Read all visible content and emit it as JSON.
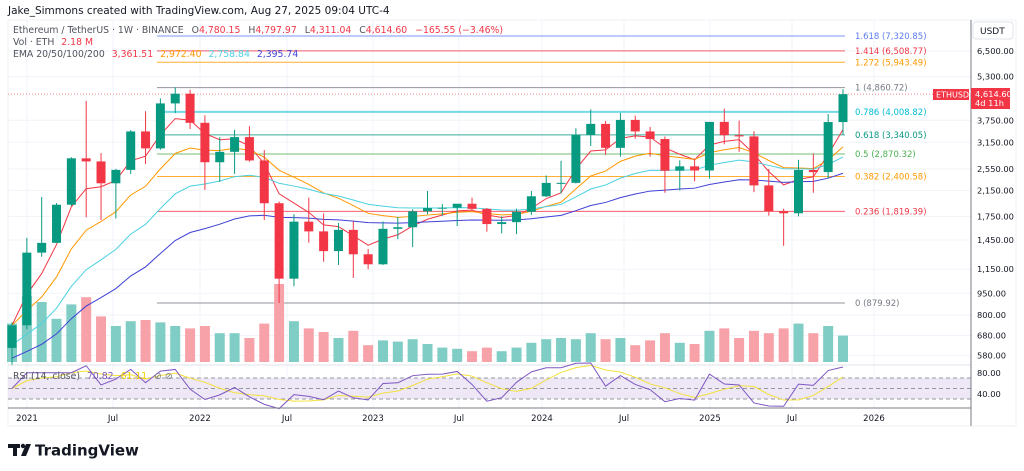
{
  "header": {
    "credit": "Jake_Simmons created with TradingView.com, Aug 27, 2025 09:04 UTC-4"
  },
  "legend": {
    "symbol": "Ethereum / TetherUS · 1W · BINANCE",
    "o_label": "O",
    "o": "4,780.15",
    "h_label": "H",
    "h": "4,797.97",
    "l_label": "L",
    "l": "4,311.04",
    "c_label": "C",
    "c": "4,614.60",
    "change": "−165.55 (−3.46%)",
    "vol_label": "Vol · ETH",
    "vol": "2.18 M",
    "ema_label": "EMA 20/50/100/200",
    "ema20": "3,361.51",
    "ema50": "2,972.40",
    "ema100": "2,758.84",
    "ema200": "2,395.74",
    "rsi_label": "RSI (14, close)",
    "rsi": "70.82",
    "rsi_ma": "61.11"
  },
  "price_axis": {
    "unit": "USDT",
    "ticks": [
      {
        "value": 6500,
        "label": "6,500.00"
      },
      {
        "value": 5300,
        "label": "5,300.00"
      },
      {
        "value": 3750,
        "label": "3,750.00"
      },
      {
        "value": 3150,
        "label": "3,150.00"
      },
      {
        "value": 2550,
        "label": "2,550.00"
      },
      {
        "value": 2150,
        "label": "2,150.00"
      },
      {
        "value": 1750,
        "label": "1,750.00"
      },
      {
        "value": 1450,
        "label": "1,450.00"
      },
      {
        "value": 1150,
        "label": "1,150.00"
      },
      {
        "value": 950,
        "label": "950.00"
      },
      {
        "value": 800,
        "label": "800.00"
      },
      {
        "value": 680,
        "label": "680.00"
      },
      {
        "value": 580,
        "label": "580.00"
      }
    ]
  },
  "rsi_axis": {
    "ticks": [
      {
        "value": 80,
        "label": "80.00"
      },
      {
        "value": 40,
        "label": "40.00"
      }
    ]
  },
  "time_axis": {
    "labels": [
      "2021",
      "Jul",
      "2022",
      "Jul",
      "2023",
      "Jul",
      "2024",
      "Jul",
      "2025",
      "Jul",
      "2026"
    ]
  },
  "last_price": {
    "symbol": "ETHUSDT",
    "price": "4,614.60",
    "countdown": "4d 11h",
    "value": 4614.6
  },
  "fib_levels": [
    {
      "ratio": "1.618",
      "label": "1.618 (7,320.85)",
      "price": 7320.85,
      "color": "#5b7cf0"
    },
    {
      "ratio": "1.414",
      "label": "1.414 (6,508.77)",
      "price": 6508.77,
      "color": "#f23645"
    },
    {
      "ratio": "1.272",
      "label": "1.272 (5,943.49)",
      "price": 5943.49,
      "color": "#ff9800"
    },
    {
      "ratio": "1",
      "label": "1 (4,860.72)",
      "price": 4860.72,
      "color": "#787b86"
    },
    {
      "ratio": "0.786",
      "label": "0.786 (4,008.82)",
      "price": 4008.82,
      "color": "#00bcd4"
    },
    {
      "ratio": "0.618",
      "label": "0.618 (3,340.05)",
      "price": 3340.05,
      "color": "#089981"
    },
    {
      "ratio": "0.5",
      "label": "0.5 (2,870.32)",
      "price": 2870.32,
      "color": "#4caf50"
    },
    {
      "ratio": "0.382",
      "label": "0.382 (2,400.58)",
      "price": 2400.58,
      "color": "#ff9800"
    },
    {
      "ratio": "0.236",
      "label": "0.236 (1,819.39)",
      "price": 1819.39,
      "color": "#f23645"
    },
    {
      "ratio": "0",
      "label": "0 (879.92)",
      "price": 879.92,
      "color": "#787b86"
    }
  ],
  "colors": {
    "up": "#089981",
    "down": "#f23645",
    "vol_up": "#7fcdc4",
    "vol_down": "#f7a1a8",
    "ema20": "#f23645",
    "ema50": "#ff9800",
    "ema100": "#4dd0e1",
    "ema200": "#3f3fd6",
    "rsi": "#7e57c2",
    "rsi_ma": "#f5e13b",
    "rsi_band": "#ede7f6"
  },
  "logo": "TradingView",
  "chart_data": {
    "type": "candlestick",
    "scale": "log",
    "ylim": [
      520,
      7600
    ],
    "grid": true,
    "periods": [
      "2020-12",
      "2021-01",
      "2021-02",
      "2021-03",
      "2021-04",
      "2021-05",
      "2021-06",
      "2021-07",
      "2021-08",
      "2021-09",
      "2021-10",
      "2021-11",
      "2021-12",
      "2022-01",
      "2022-02",
      "2022-03",
      "2022-04",
      "2022-05",
      "2022-06",
      "2022-07",
      "2022-08",
      "2022-09",
      "2022-10",
      "2022-11",
      "2022-12",
      "2023-01",
      "2023-02",
      "2023-03",
      "2023-04",
      "2023-05",
      "2023-06",
      "2023-07",
      "2023-08",
      "2023-09",
      "2023-10",
      "2023-11",
      "2023-12",
      "2024-01",
      "2024-02",
      "2024-03",
      "2024-04",
      "2024-05",
      "2024-06",
      "2024-07",
      "2024-08",
      "2024-09",
      "2024-10",
      "2024-11",
      "2024-12",
      "2025-01",
      "2025-02",
      "2025-03",
      "2025-04",
      "2025-05",
      "2025-06",
      "2025-07",
      "2025-08"
    ],
    "ohlc": [
      [
        616,
        755,
        535,
        737
      ],
      [
        737,
        1475,
        714,
        1312
      ],
      [
        1312,
        2040,
        1270,
        1418
      ],
      [
        1418,
        1944,
        1433,
        1919
      ],
      [
        1919,
        2797,
        1900,
        2773
      ],
      [
        2773,
        4372,
        1737,
        2706
      ],
      [
        2706,
        2890,
        1700,
        2275
      ],
      [
        2275,
        2550,
        1720,
        2530
      ],
      [
        2530,
        3470,
        2450,
        3433
      ],
      [
        3433,
        4030,
        2650,
        3001
      ],
      [
        3001,
        4460,
        2970,
        4288
      ],
      [
        4288,
        4868,
        3970,
        4631
      ],
      [
        4631,
        4778,
        3500,
        3676
      ],
      [
        3676,
        3900,
        2160,
        2688
      ],
      [
        2688,
        3280,
        2300,
        2920
      ],
      [
        2920,
        3480,
        2450,
        3282
      ],
      [
        3282,
        3580,
        2700,
        2727
      ],
      [
        2727,
        2960,
        1700,
        1942
      ],
      [
        1942,
        1970,
        880,
        1067
      ],
      [
        1067,
        1780,
        1005,
        1678
      ],
      [
        1678,
        2030,
        1420,
        1553
      ],
      [
        1553,
        1790,
        1220,
        1328
      ],
      [
        1328,
        1660,
        1190,
        1572
      ],
      [
        1572,
        1680,
        1073,
        1295
      ],
      [
        1295,
        1350,
        1150,
        1196
      ],
      [
        1196,
        1680,
        1190,
        1585
      ],
      [
        1585,
        1740,
        1460,
        1605
      ],
      [
        1605,
        1850,
        1370,
        1821
      ],
      [
        1821,
        2140,
        1780,
        1869
      ],
      [
        1869,
        1930,
        1760,
        1874
      ],
      [
        1874,
        1930,
        1620,
        1934
      ],
      [
        1934,
        2030,
        1840,
        1857
      ],
      [
        1857,
        1870,
        1550,
        1646
      ],
      [
        1646,
        1750,
        1530,
        1671
      ],
      [
        1671,
        1860,
        1520,
        1814
      ],
      [
        1814,
        2140,
        1770,
        2052
      ],
      [
        2052,
        2420,
        2040,
        2282
      ],
      [
        2282,
        2720,
        2100,
        2283
      ],
      [
        2283,
        3520,
        2270,
        3340
      ],
      [
        3340,
        4090,
        3060,
        3645
      ],
      [
        3645,
        3730,
        2850,
        3014
      ],
      [
        3014,
        3980,
        2810,
        3762
      ],
      [
        3762,
        3890,
        3240,
        3433
      ],
      [
        3433,
        3560,
        2810,
        3232
      ],
      [
        3232,
        3300,
        2110,
        2513
      ],
      [
        2513,
        2730,
        2150,
        2602
      ],
      [
        2602,
        2770,
        2310,
        2518
      ],
      [
        2518,
        3680,
        2360,
        3703
      ],
      [
        3703,
        4110,
        3100,
        3332
      ],
      [
        3332,
        3740,
        2920,
        3300
      ],
      [
        3300,
        3440,
        2120,
        2237
      ],
      [
        2237,
        2550,
        1760,
        1822
      ],
      [
        1822,
        1860,
        1385,
        1793
      ],
      [
        1793,
        2740,
        1750,
        2528
      ],
      [
        2528,
        2880,
        2110,
        2486
      ],
      [
        2486,
        3940,
        2370,
        3698
      ],
      [
        3698,
        4798,
        3350,
        4614.6
      ]
    ],
    "volume_m": [
      3.2,
      5.5,
      5.0,
      3.6,
      4.8,
      5.4,
      3.8,
      3.0,
      3.4,
      3.5,
      3.3,
      3.0,
      2.8,
      3.0,
      2.4,
      2.4,
      2.0,
      3.2,
      6.5,
      3.4,
      2.8,
      2.5,
      2.0,
      2.6,
      1.4,
      1.8,
      1.7,
      1.9,
      1.5,
      1.2,
      1.1,
      0.9,
      1.2,
      0.9,
      1.2,
      1.6,
      1.9,
      2.0,
      1.9,
      2.4,
      1.9,
      2.0,
      1.4,
      1.8,
      2.4,
      1.6,
      1.5,
      2.6,
      2.8,
      2.0,
      2.6,
      2.4,
      2.8,
      3.2,
      2.4,
      3.0,
      2.2
    ],
    "ema_periods": [
      20,
      50,
      100,
      200
    ]
  }
}
